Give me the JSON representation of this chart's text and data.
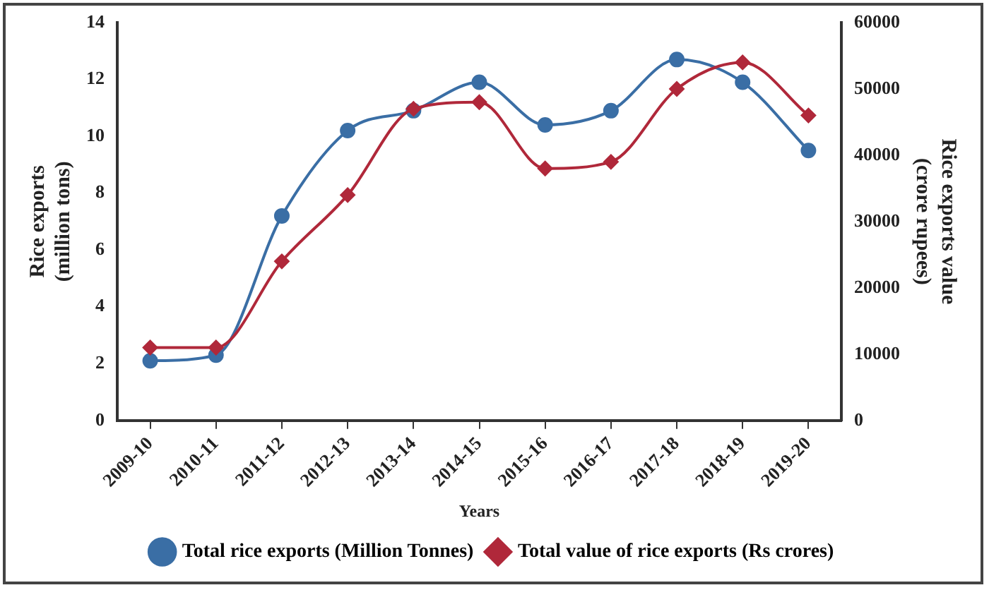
{
  "chart_data": {
    "type": "line",
    "xlabel": "Years",
    "ylabel": "Rice exports\n(million tons)",
    "y2label": "Rice exports value\n(crore rupees)",
    "categories": [
      "2009-10",
      "2010-11",
      "2011-12",
      "2012-13",
      "2013-14",
      "2014-15",
      "2015-16",
      "2016-17",
      "2017-18",
      "2018-19",
      "2019-20"
    ],
    "series": [
      {
        "name": "Total rice exports (Million Tonnes)",
        "color": "#3a6ea5",
        "marker": "circle",
        "values": [
          2.1,
          2.3,
          7.2,
          10.2,
          10.9,
          11.9,
          10.4,
          10.9,
          12.7,
          11.9,
          9.5
        ]
      },
      {
        "name": "Total value of rice exports (Rs crores)",
        "color": "#b0283a",
        "marker": "diamond",
        "axis": "y2",
        "values": [
          11000,
          11000,
          24000,
          34000,
          47000,
          48000,
          38000,
          39000,
          50000,
          54000,
          46000
        ]
      }
    ],
    "ylim": [
      0,
      14
    ],
    "yticks": [
      0,
      2,
      4,
      6,
      8,
      10,
      12,
      14
    ],
    "y2lim": [
      0,
      60000
    ],
    "y2ticks": [
      0,
      10000,
      20000,
      30000,
      40000,
      50000,
      60000
    ],
    "grid": false,
    "legend": "bottom"
  }
}
